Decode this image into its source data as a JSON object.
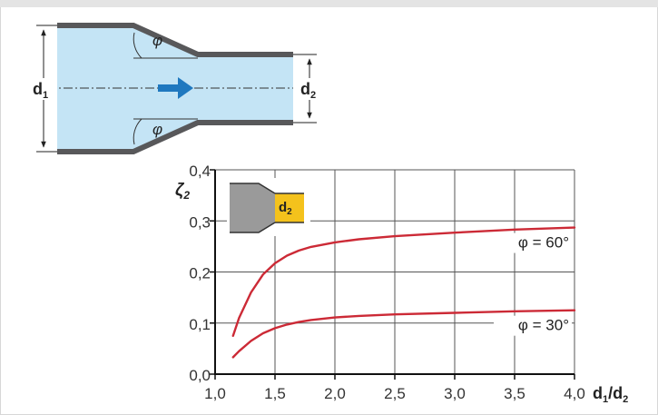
{
  "diagram": {
    "label_d1": "d",
    "label_d1_sub": "1",
    "label_d2": "d",
    "label_d2_sub": "2",
    "angle_symbol": "φ"
  },
  "chart_data": {
    "type": "line",
    "ylabel_symbol": "ζ",
    "ylabel_sub": "2",
    "xlabel_d1": "d",
    "xlabel_d1_sub": "1",
    "xlabel_sep": "/",
    "xlabel_d2": "d",
    "xlabel_d2_sub": "2",
    "inset_label": "d",
    "inset_label_sub": "2",
    "xlim": [
      1.0,
      4.0
    ],
    "ylim": [
      0.0,
      0.4
    ],
    "grid": true,
    "x_ticks": [
      1.0,
      1.5,
      2.0,
      2.5,
      3.0,
      3.5,
      4.0
    ],
    "x_tick_labels": [
      "1,0",
      "1,5",
      "2,0",
      "2,5",
      "3,0",
      "3,5",
      "4,0"
    ],
    "y_ticks": [
      0.0,
      0.1,
      0.2,
      0.3,
      0.4
    ],
    "y_tick_labels": [
      "0,0",
      "0,1",
      "0,2",
      "0,3",
      "0,4"
    ],
    "series": [
      {
        "name": "φ = 60°",
        "color": "#cc2a36",
        "x": [
          1.15,
          1.2,
          1.3,
          1.4,
          1.5,
          1.6,
          1.7,
          1.8,
          2.0,
          2.2,
          2.5,
          3.0,
          3.5,
          4.0
        ],
        "y": [
          0.075,
          0.11,
          0.16,
          0.195,
          0.217,
          0.232,
          0.242,
          0.249,
          0.258,
          0.264,
          0.27,
          0.277,
          0.283,
          0.287
        ]
      },
      {
        "name": "φ = 30°",
        "color": "#cc2a36",
        "x": [
          1.15,
          1.2,
          1.3,
          1.4,
          1.5,
          1.6,
          1.7,
          1.8,
          2.0,
          2.2,
          2.5,
          3.0,
          3.5,
          4.0
        ],
        "y": [
          0.033,
          0.045,
          0.065,
          0.08,
          0.09,
          0.097,
          0.102,
          0.106,
          0.111,
          0.114,
          0.117,
          0.12,
          0.123,
          0.125
        ]
      }
    ]
  }
}
